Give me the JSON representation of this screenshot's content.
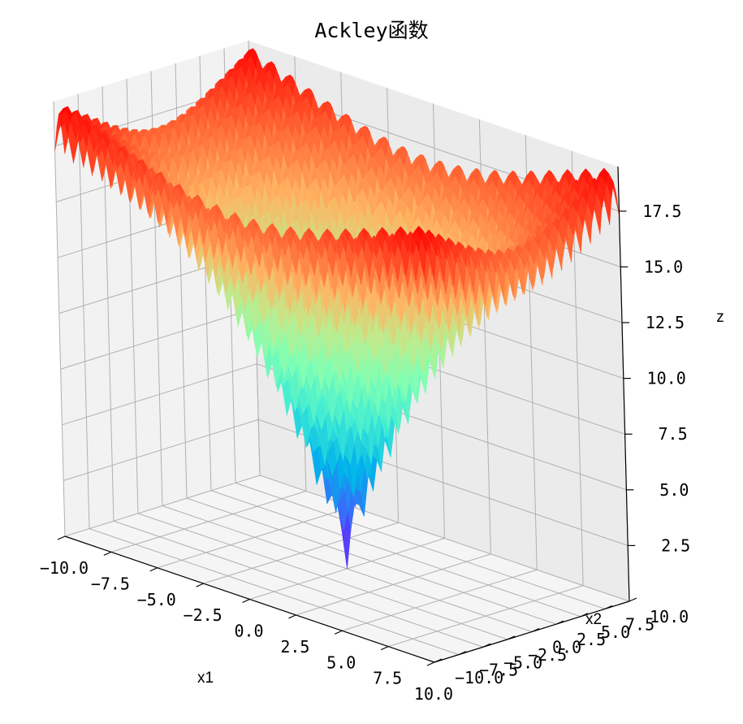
{
  "chart_data": {
    "type": "surface3d",
    "title": "Ackley函数",
    "xlabel": "x1",
    "ylabel": "x2",
    "zlabel": "z",
    "function": "ackley",
    "x_range": [
      -10,
      10
    ],
    "y_range": [
      -10,
      10
    ],
    "z_range": [
      0,
      19.5
    ],
    "x_ticks": [
      "−10.0",
      "−7.5",
      "−5.0",
      "−2.5",
      "0.0",
      "2.5",
      "5.0",
      "7.5",
      "10.0"
    ],
    "y_ticks": [
      "−10.0",
      "−7.5",
      "−5.0",
      "−2.5",
      "0.0",
      "2.5",
      "5.0",
      "7.5",
      "10.0"
    ],
    "z_ticks": [
      "2.5",
      "5.0",
      "7.5",
      "10.0",
      "12.5",
      "15.0",
      "17.5"
    ],
    "colormap": "rainbow",
    "grid": true,
    "pane_color": "#f2f2f2",
    "grid_color": "#b0b0b0"
  }
}
